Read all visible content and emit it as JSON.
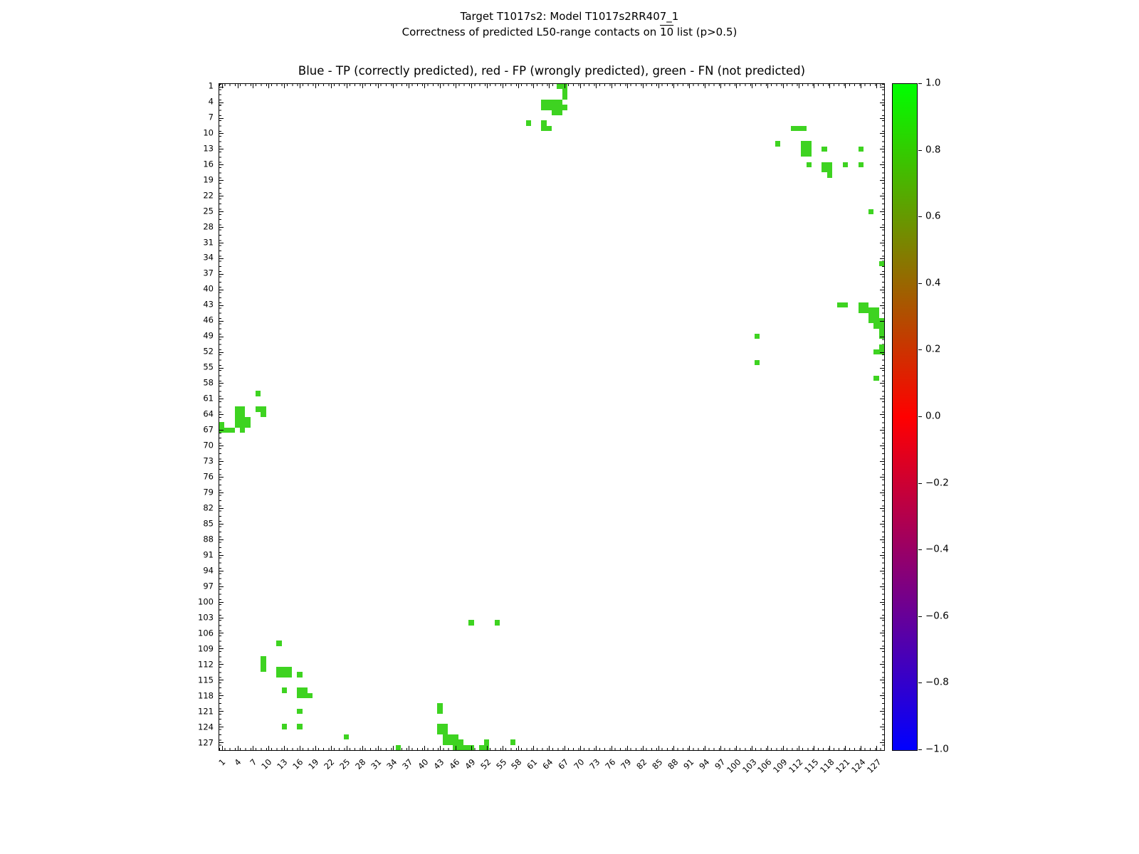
{
  "titles": {
    "suptitle_line1": "Target T1017s2: Model T1017s2RR407_1",
    "suptitle_line2_prefix": "Correctness of predicted L50-range contacts on ",
    "suptitle_line2_overlined": "10",
    "suptitle_line2_suffix": " list (p>0.5)",
    "axes_title": "Blue - TP (correctly predicted), red - FP (wrongly predicted), green - FN (not predicted)"
  },
  "chart_data": {
    "type": "heatmap",
    "title": "Blue - TP (correctly predicted), red - FP (wrongly predicted), green - FN (not predicted)",
    "n_residues": 128,
    "axis_tick_labels": [
      1,
      4,
      7,
      10,
      13,
      16,
      19,
      22,
      25,
      28,
      31,
      34,
      37,
      40,
      43,
      46,
      49,
      52,
      55,
      58,
      61,
      64,
      67,
      70,
      73,
      76,
      79,
      82,
      85,
      88,
      91,
      94,
      97,
      100,
      103,
      106,
      109,
      112,
      115,
      118,
      121,
      124,
      127
    ],
    "grid": false,
    "symmetric": true,
    "colors": {
      "fn_green": "#3ed321",
      "fp_red": "#ff0000",
      "tp_blue": "#0000ff",
      "background": "#ffffff"
    },
    "colorbar": {
      "min": -1.0,
      "max": 1.0,
      "tick_labels": [
        "1.0",
        "0.8",
        "0.6",
        "0.4",
        "0.2",
        "0.0",
        "−0.2",
        "−0.4",
        "−0.6",
        "−0.8",
        "−1.0"
      ],
      "gradient": [
        {
          "color": "#00ff00",
          "pos": 0
        },
        {
          "color": "#ff0000",
          "pos": 50
        },
        {
          "color": "#0000ff",
          "pos": 100
        }
      ]
    },
    "fn_pairs": [
      [
        1,
        66
      ],
      [
        1,
        67
      ],
      [
        2,
        67
      ],
      [
        3,
        67
      ],
      [
        4,
        63
      ],
      [
        4,
        64
      ],
      [
        4,
        65
      ],
      [
        4,
        66
      ],
      [
        5,
        63
      ],
      [
        5,
        64
      ],
      [
        5,
        65
      ],
      [
        5,
        66
      ],
      [
        5,
        67
      ],
      [
        6,
        65
      ],
      [
        6,
        66
      ],
      [
        8,
        60
      ],
      [
        8,
        63
      ],
      [
        9,
        63
      ],
      [
        9,
        64
      ],
      [
        9,
        111
      ],
      [
        9,
        112
      ],
      [
        9,
        113
      ],
      [
        12,
        108
      ],
      [
        12,
        113
      ],
      [
        12,
        114
      ],
      [
        13,
        113
      ],
      [
        13,
        114
      ],
      [
        14,
        113
      ],
      [
        14,
        114
      ],
      [
        13,
        117
      ],
      [
        13,
        124
      ],
      [
        16,
        114
      ],
      [
        16,
        117
      ],
      [
        16,
        118
      ],
      [
        17,
        117
      ],
      [
        17,
        118
      ],
      [
        18,
        118
      ],
      [
        16,
        121
      ],
      [
        16,
        124
      ],
      [
        25,
        126
      ],
      [
        35,
        128
      ],
      [
        43,
        120
      ],
      [
        43,
        121
      ],
      [
        43,
        124
      ],
      [
        43,
        125
      ],
      [
        44,
        124
      ],
      [
        44,
        125
      ],
      [
        44,
        126
      ],
      [
        44,
        127
      ],
      [
        45,
        126
      ],
      [
        45,
        127
      ],
      [
        46,
        126
      ],
      [
        46,
        127
      ],
      [
        46,
        128
      ],
      [
        47,
        127
      ],
      [
        47,
        128
      ],
      [
        48,
        128
      ],
      [
        49,
        104
      ],
      [
        49,
        128
      ],
      [
        51,
        128
      ],
      [
        52,
        127
      ],
      [
        52,
        128
      ],
      [
        54,
        104
      ],
      [
        57,
        127
      ]
    ]
  }
}
